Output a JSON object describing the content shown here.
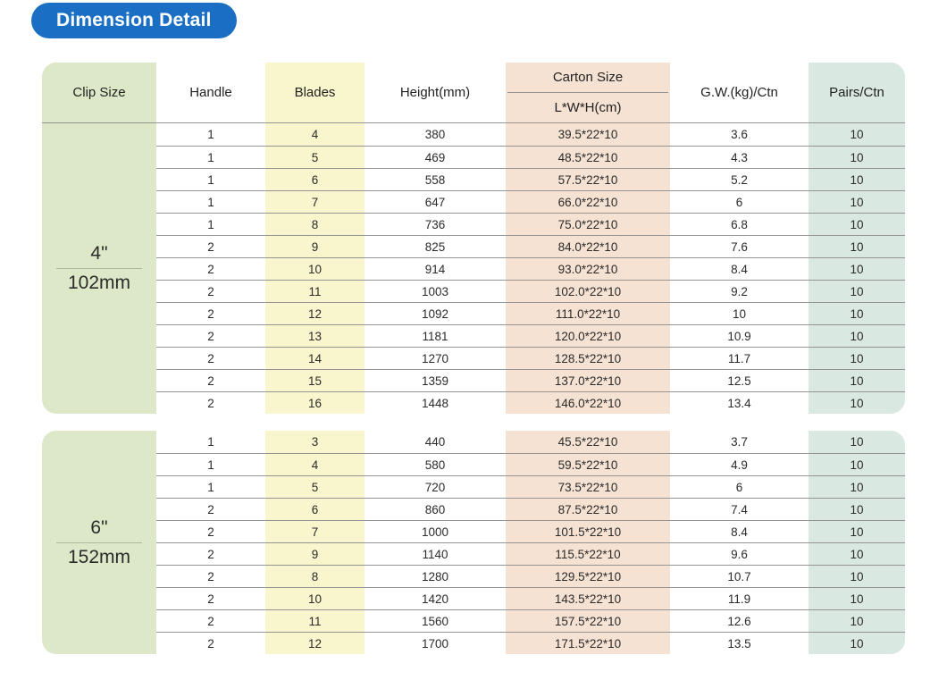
{
  "page": {
    "title_badge": "Dimension Detail"
  },
  "colors": {
    "badge_blue": "#1a6fc5",
    "clip_size_green": "#dde8c8",
    "blades_yellow": "#f9f5cc",
    "carton_peach": "#f5e2d3",
    "pairs_teal": "#d9e8e0",
    "row_line_gray": "#949494"
  },
  "table": {
    "headers": {
      "clip_size": "Clip Size",
      "handle": "Handle",
      "blades": "Blades",
      "height": "Height(mm)",
      "carton_size": "Carton Size",
      "carton_sub": "L*W*H(cm)",
      "gross_weight": "G.W.(kg)/Ctn",
      "pairs": "Pairs/Ctn"
    },
    "sections": [
      {
        "clip_size_inch": "4\"",
        "clip_size_mm": "102mm",
        "rows": [
          {
            "handle": "1",
            "blades": "4",
            "height": "380",
            "carton": "39.5*22*10",
            "gw": "3.6",
            "pairs": "10"
          },
          {
            "handle": "1",
            "blades": "5",
            "height": "469",
            "carton": "48.5*22*10",
            "gw": "4.3",
            "pairs": "10"
          },
          {
            "handle": "1",
            "blades": "6",
            "height": "558",
            "carton": "57.5*22*10",
            "gw": "5.2",
            "pairs": "10"
          },
          {
            "handle": "1",
            "blades": "7",
            "height": "647",
            "carton": "66.0*22*10",
            "gw": "6",
            "pairs": "10"
          },
          {
            "handle": "1",
            "blades": "8",
            "height": "736",
            "carton": "75.0*22*10",
            "gw": "6.8",
            "pairs": "10"
          },
          {
            "handle": "2",
            "blades": "9",
            "height": "825",
            "carton": "84.0*22*10",
            "gw": "7.6",
            "pairs": "10"
          },
          {
            "handle": "2",
            "blades": "10",
            "height": "914",
            "carton": "93.0*22*10",
            "gw": "8.4",
            "pairs": "10"
          },
          {
            "handle": "2",
            "blades": "11",
            "height": "1003",
            "carton": "102.0*22*10",
            "gw": "9.2",
            "pairs": "10"
          },
          {
            "handle": "2",
            "blades": "12",
            "height": "1092",
            "carton": "111.0*22*10",
            "gw": "10",
            "pairs": "10"
          },
          {
            "handle": "2",
            "blades": "13",
            "height": "1181",
            "carton": "120.0*22*10",
            "gw": "10.9",
            "pairs": "10"
          },
          {
            "handle": "2",
            "blades": "14",
            "height": "1270",
            "carton": "128.5*22*10",
            "gw": "11.7",
            "pairs": "10"
          },
          {
            "handle": "2",
            "blades": "15",
            "height": "1359",
            "carton": "137.0*22*10",
            "gw": "12.5",
            "pairs": "10"
          },
          {
            "handle": "2",
            "blades": "16",
            "height": "1448",
            "carton": "146.0*22*10",
            "gw": "13.4",
            "pairs": "10"
          }
        ]
      },
      {
        "clip_size_inch": "6\"",
        "clip_size_mm": "152mm",
        "rows": [
          {
            "handle": "1",
            "blades": "3",
            "height": "440",
            "carton": "45.5*22*10",
            "gw": "3.7",
            "pairs": "10"
          },
          {
            "handle": "1",
            "blades": "4",
            "height": "580",
            "carton": "59.5*22*10",
            "gw": "4.9",
            "pairs": "10"
          },
          {
            "handle": "1",
            "blades": "5",
            "height": "720",
            "carton": "73.5*22*10",
            "gw": "6",
            "pairs": "10"
          },
          {
            "handle": "2",
            "blades": "6",
            "height": "860",
            "carton": "87.5*22*10",
            "gw": "7.4",
            "pairs": "10"
          },
          {
            "handle": "2",
            "blades": "7",
            "height": "1000",
            "carton": "101.5*22*10",
            "gw": "8.4",
            "pairs": "10"
          },
          {
            "handle": "2",
            "blades": "9",
            "height": "1140",
            "carton": "115.5*22*10",
            "gw": "9.6",
            "pairs": "10"
          },
          {
            "handle": "2",
            "blades": "8",
            "height": "1280",
            "carton": "129.5*22*10",
            "gw": "10.7",
            "pairs": "10"
          },
          {
            "handle": "2",
            "blades": "10",
            "height": "1420",
            "carton": "143.5*22*10",
            "gw": "11.9",
            "pairs": "10"
          },
          {
            "handle": "2",
            "blades": "11",
            "height": "1560",
            "carton": "157.5*22*10",
            "gw": "12.6",
            "pairs": "10"
          },
          {
            "handle": "2",
            "blades": "12",
            "height": "1700",
            "carton": "171.5*22*10",
            "gw": "13.5",
            "pairs": "10"
          }
        ]
      }
    ]
  }
}
